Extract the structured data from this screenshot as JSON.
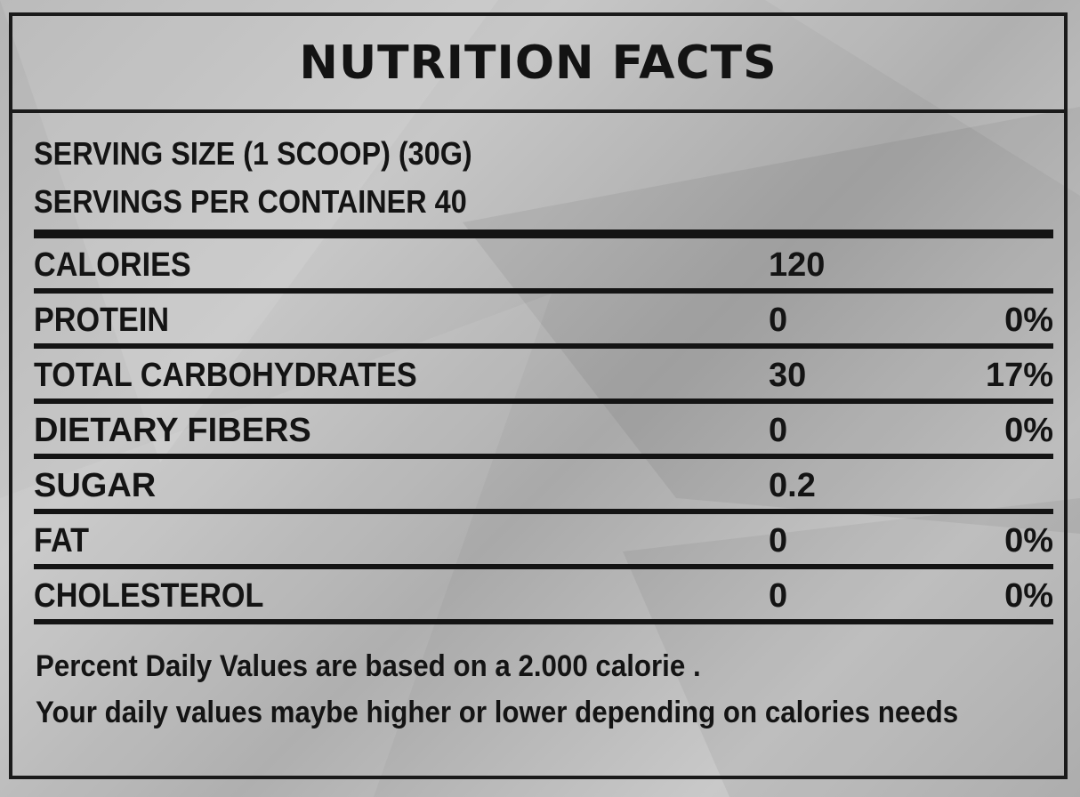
{
  "title": "NUTRITION FACTS",
  "serving": {
    "size": "SERVING SIZE (1 SCOOP)  (30G)",
    "per_container": "SERVINGS PER CONTAINER 40"
  },
  "rows": [
    {
      "label": "CALORIES",
      "amount": "120",
      "percent": ""
    },
    {
      "label": "PROTEIN",
      "amount": "0",
      "percent": "0%"
    },
    {
      "label": "TOTAL CARBOHYDRATES",
      "amount": "30",
      "percent": "17%"
    },
    {
      "label": "DIETARY FIBERS",
      "amount": "0",
      "percent": "0%"
    },
    {
      "label": "SUGAR",
      "amount": "0.2",
      "percent": ""
    },
    {
      "label": "FAT",
      "amount": "0",
      "percent": "0%"
    },
    {
      "label": "CHOLESTEROL",
      "amount": "0",
      "percent": "0%"
    }
  ],
  "footnote": {
    "line1": "Percent Daily Values are based on a 2.000 calorie .",
    "line2": "Your daily values maybe higher or lower depending on calories needs"
  },
  "colors": {
    "ink": "#141414",
    "background": "#bdbdbd"
  }
}
